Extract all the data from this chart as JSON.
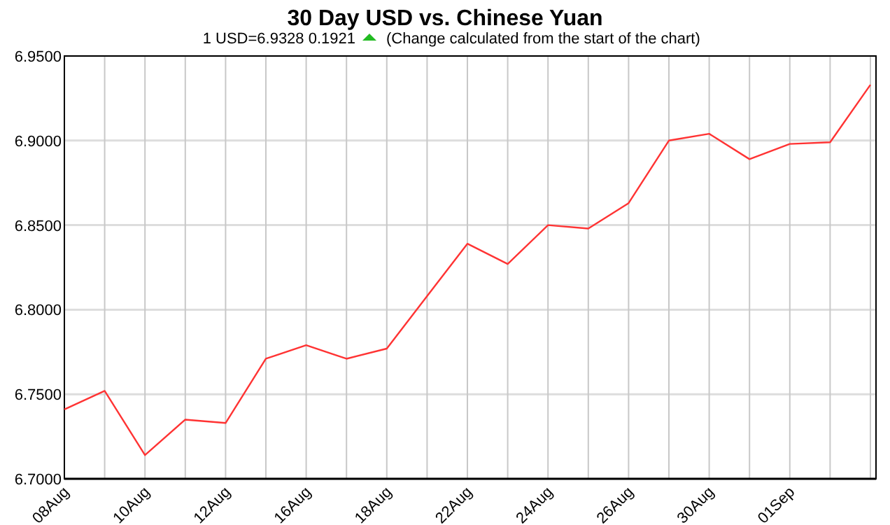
{
  "chart_data": {
    "type": "line",
    "title": "30 Day USD vs. Chinese Yuan",
    "subtitle": "1 USD=6.9328  0.1921",
    "annotations": [
      "(Change calculated from the start of the chart)"
    ],
    "categories": [
      "08Aug",
      null,
      "10Aug",
      null,
      "12Aug",
      null,
      "16Aug",
      null,
      "18Aug",
      null,
      "22Aug",
      null,
      "24Aug",
      null,
      "26Aug",
      null,
      "30Aug",
      null,
      "01Sep",
      null,
      null
    ],
    "series": [
      {
        "color": "#ff3333",
        "values": [
          6.741,
          6.752,
          6.714,
          6.735,
          6.733,
          6.771,
          6.779,
          6.771,
          6.777,
          6.808,
          6.839,
          6.827,
          6.85,
          6.848,
          6.863,
          6.9,
          6.904,
          6.889,
          6.898,
          6.899,
          6.933
        ]
      }
    ],
    "ylim": [
      6.7,
      6.95
    ],
    "yticks": [
      {
        "value": 6.7,
        "label": "6.7000"
      },
      {
        "value": 6.75,
        "label": "6.7500"
      },
      {
        "value": 6.8,
        "label": "6.8000"
      },
      {
        "value": 6.85,
        "label": "6.8500"
      },
      {
        "value": 6.9,
        "label": "6.9000"
      },
      {
        "value": 6.95,
        "label": "6.9500"
      }
    ],
    "grid": true,
    "marker": "none",
    "line_style": "solid"
  }
}
